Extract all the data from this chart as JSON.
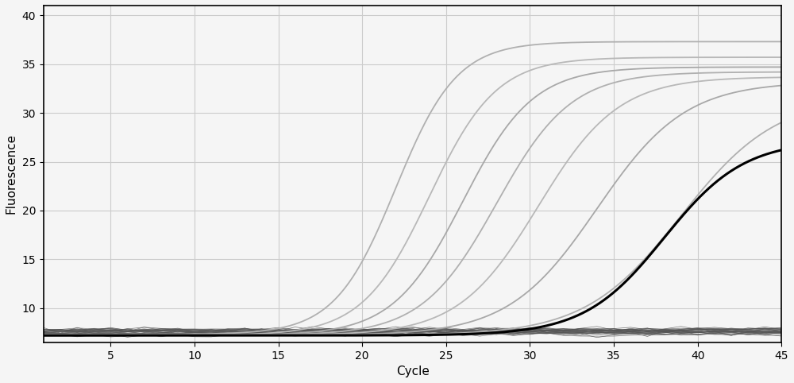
{
  "xlabel": "Cycle",
  "ylabel": "Fluorescence",
  "xlim": [
    1,
    45
  ],
  "ylim": [
    6.5,
    41
  ],
  "xticks": [
    5,
    10,
    15,
    20,
    25,
    30,
    35,
    40,
    45
  ],
  "yticks": [
    10,
    15,
    20,
    25,
    30,
    35,
    40
  ],
  "background_color": "#f5f5f5",
  "grid_color": "#cccccc",
  "sigmoid_curves": [
    {
      "midpoint": 22.0,
      "L": 30.0,
      "k": 0.55,
      "baseline": 7.3,
      "color": "#b0b0b0",
      "lw": 1.3
    },
    {
      "midpoint": 24.0,
      "L": 28.5,
      "k": 0.5,
      "baseline": 7.2,
      "color": "#b8b8b8",
      "lw": 1.3
    },
    {
      "midpoint": 26.0,
      "L": 27.5,
      "k": 0.48,
      "baseline": 7.2,
      "color": "#a8a8a8",
      "lw": 1.3
    },
    {
      "midpoint": 28.0,
      "L": 27.0,
      "k": 0.45,
      "baseline": 7.2,
      "color": "#b0b0b0",
      "lw": 1.3
    },
    {
      "midpoint": 30.5,
      "L": 26.5,
      "k": 0.42,
      "baseline": 7.2,
      "color": "#b8b8b8",
      "lw": 1.3
    },
    {
      "midpoint": 34.0,
      "L": 26.0,
      "k": 0.38,
      "baseline": 7.2,
      "color": "#a8a8a8",
      "lw": 1.3
    },
    {
      "midpoint": 39.0,
      "L": 24.5,
      "k": 0.35,
      "baseline": 7.2,
      "color": "#b0b0b0",
      "lw": 1.3
    }
  ],
  "black_curve": {
    "midpoint": 38.0,
    "L": 20.0,
    "k": 0.42,
    "baseline": 7.2,
    "color": "#000000",
    "lw": 2.2
  },
  "flat_curves_count": 30,
  "flat_baseline": 7.5,
  "flat_noise_std": 0.12,
  "flat_color": "#555555",
  "flat_lw": 0.5,
  "xlabel_fontsize": 11,
  "ylabel_fontsize": 11,
  "tick_fontsize": 10
}
